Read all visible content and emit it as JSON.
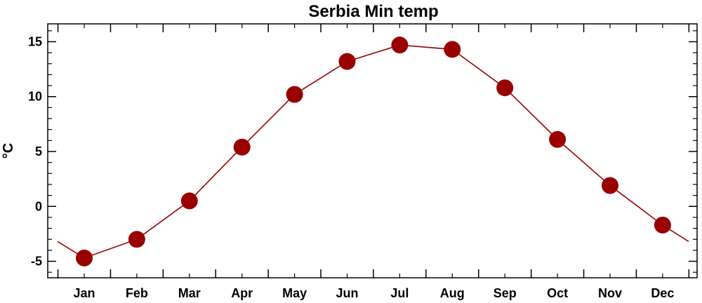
{
  "chart_data": {
    "type": "line",
    "title": "Serbia Min temp",
    "ylabel": "°C",
    "xlabel": "",
    "categories": [
      "Jan",
      "Feb",
      "Mar",
      "Apr",
      "May",
      "Jun",
      "Jul",
      "Aug",
      "Sep",
      "Oct",
      "Nov",
      "Dec"
    ],
    "values": [
      -4.7,
      -3.0,
      0.5,
      5.4,
      10.2,
      13.2,
      14.7,
      14.3,
      10.8,
      6.1,
      1.9,
      -1.7
    ],
    "ylim": [
      -6.5,
      16.5
    ],
    "yticks": [
      -5,
      0,
      5,
      10,
      15
    ],
    "ytick_labels": [
      "-5",
      "0",
      "5",
      "10",
      "15"
    ],
    "line_color": "#990000",
    "marker_color": "#990000",
    "grid": false
  }
}
